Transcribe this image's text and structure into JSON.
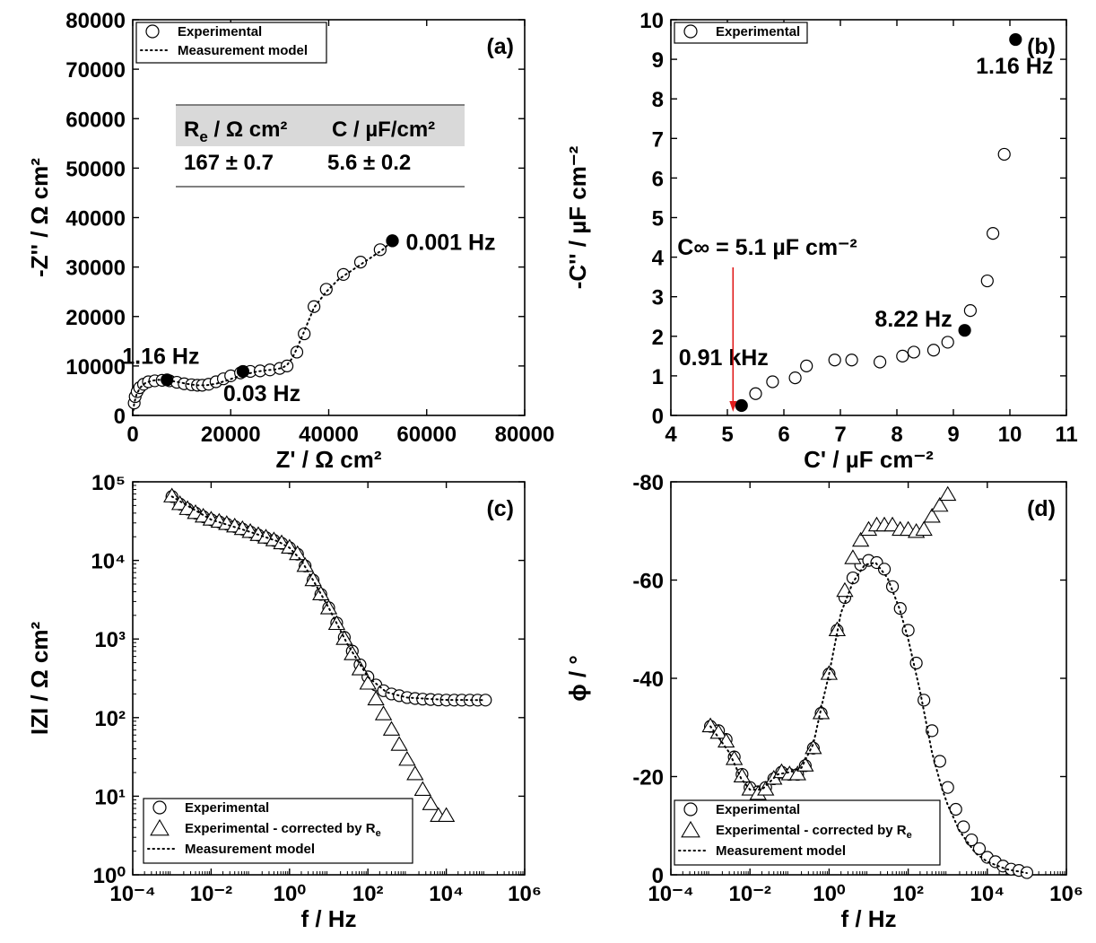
{
  "chart_data": [
    {
      "panel": "(a)",
      "type": "scatter",
      "xlabel": "Z' / Ω cm²",
      "ylabel": "-Z'' / Ω cm²",
      "xlim": [
        0,
        80000
      ],
      "ylim": [
        0,
        80000
      ],
      "xticks": [
        "0",
        "20000",
        "40000",
        "60000",
        "80000"
      ],
      "yticks": [
        "0",
        "10000",
        "20000",
        "30000",
        "40000",
        "50000",
        "60000",
        "70000",
        "80000"
      ],
      "legend": [
        "Experimental",
        "Measurement model"
      ],
      "legend_position": "top-left",
      "series": [
        {
          "name": "Experimental",
          "marker": "open-circle",
          "x": [
            300,
            500,
            900,
            1400,
            2200,
            3200,
            4500,
            6000,
            7500,
            9000,
            10500,
            12000,
            13200,
            14200,
            15500,
            17000,
            18500,
            20000,
            22000,
            24000,
            26000,
            28000,
            30000,
            31500,
            33500,
            35000,
            37000,
            39500,
            43000,
            46500,
            50500,
            53000
          ],
          "y": [
            2500,
            3800,
            4800,
            5600,
            6300,
            6800,
            7000,
            7100,
            7000,
            6700,
            6400,
            6200,
            6100,
            6100,
            6300,
            6800,
            7400,
            8000,
            8600,
            8900,
            9000,
            9200,
            9500,
            10000,
            12800,
            16500,
            22000,
            25500,
            28500,
            31000,
            33500,
            35300
          ]
        },
        {
          "name": "Measurement model",
          "style": "dotted",
          "x": [
            0,
            300,
            800,
            1500,
            2500,
            3800,
            5200,
            7000,
            9000,
            11000,
            13000,
            15000,
            17000,
            19000,
            21000,
            23000,
            25000,
            27000,
            29000,
            30500,
            31500,
            32500,
            33500,
            35000,
            37000,
            39500,
            42000,
            45000,
            48000,
            51000,
            53000
          ],
          "y": [
            0,
            2500,
            4300,
            5600,
            6500,
            7000,
            7200,
            7100,
            6800,
            6400,
            6100,
            6100,
            6400,
            7000,
            7700,
            8300,
            8800,
            9100,
            9300,
            9600,
            10200,
            11500,
            13500,
            17000,
            21800,
            25000,
            27500,
            29500,
            31500,
            33500,
            35300
          ]
        }
      ],
      "highlighted_points": [
        {
          "label": "1.16 Hz",
          "x": 7000,
          "y": 7200
        },
        {
          "label": "0.03 Hz",
          "x": 22500,
          "y": 8900
        },
        {
          "label": "0.001 Hz",
          "x": 53000,
          "y": 35300
        }
      ],
      "table": {
        "headers": [
          "R",
          "e",
          " / Ω cm²",
          "C / µF/cm²"
        ],
        "row": [
          "167 ± 0.7",
          "5.6 ± 0.2"
        ]
      }
    },
    {
      "panel": "(b)",
      "type": "scatter",
      "xlabel": "C' / µF cm⁻²",
      "ylabel": "-C'' / µF cm⁻²",
      "xlim": [
        4,
        11
      ],
      "ylim": [
        0,
        10
      ],
      "xticks": [
        "4",
        "5",
        "6",
        "7",
        "8",
        "9",
        "10",
        "11"
      ],
      "yticks": [
        "0",
        "1",
        "2",
        "3",
        "4",
        "5",
        "6",
        "7",
        "8",
        "9",
        "10"
      ],
      "legend": [
        "Experimental"
      ],
      "legend_position": "top-left",
      "series": [
        {
          "name": "Experimental",
          "marker": "open-circle",
          "x": [
            5.5,
            5.8,
            6.2,
            6.4,
            6.9,
            7.2,
            7.7,
            8.1,
            8.3,
            8.65,
            8.9,
            9.3,
            9.6,
            9.7,
            9.9
          ],
          "y": [
            0.55,
            0.85,
            0.95,
            1.25,
            1.4,
            1.4,
            1.35,
            1.5,
            1.6,
            1.65,
            1.85,
            2.65,
            3.4,
            4.6,
            6.6
          ]
        }
      ],
      "highlighted_points": [
        {
          "label": "1.16 Hz",
          "x": 10.1,
          "y": 9.5
        },
        {
          "label": "8.22 Hz",
          "x": 9.2,
          "y": 2.15
        },
        {
          "label": "0.91 kHz",
          "x": 5.25,
          "y": 0.25
        }
      ],
      "annotation": {
        "text": "C∞ = 5.1 µF cm⁻²",
        "x": 5.1,
        "color": "#e01b1b"
      }
    },
    {
      "panel": "(c)",
      "type": "scatter",
      "xlabel": "f / Hz",
      "ylabel": "IZI / Ω cm²",
      "xscale": "log",
      "yscale": "log",
      "xlim": [
        0.0001,
        1000000
      ],
      "ylim": [
        1,
        100000
      ],
      "xticks": [
        "10⁻⁴",
        "10⁻²",
        "10⁰",
        "10²",
        "10⁴",
        "10⁶"
      ],
      "yticks": [
        "10⁰",
        "10¹",
        "10²",
        "10³",
        "10⁴",
        "10⁵"
      ],
      "legend": [
        "Experimental",
        "Experimental - corrected by Re",
        "Measurement model"
      ],
      "legend_position": "bottom-left",
      "series": [
        {
          "name": "Experimental",
          "marker": "open-circle",
          "x": [
            0.001,
            0.0016,
            0.0025,
            0.004,
            0.0063,
            0.01,
            0.016,
            0.025,
            0.04,
            0.063,
            0.1,
            0.16,
            0.25,
            0.4,
            0.63,
            1,
            1.6,
            2.5,
            4,
            6.3,
            10,
            16,
            25,
            40,
            63,
            100,
            160,
            250,
            400,
            630,
            1000,
            1600,
            2500,
            4000,
            6300,
            10000,
            16000,
            25000,
            40000,
            63000,
            100000
          ],
          "y": [
            65000,
            52000,
            45000,
            40000,
            36000,
            33000,
            31000,
            29000,
            27000,
            25000,
            23000,
            21000,
            19500,
            18000,
            16500,
            14500,
            12000,
            8500,
            5600,
            3700,
            2500,
            1600,
            1050,
            700,
            470,
            330,
            260,
            220,
            200,
            190,
            180,
            175,
            172,
            170,
            168,
            167,
            167,
            167,
            167,
            167,
            167
          ]
        },
        {
          "name": "Experimental - corrected by Re",
          "marker": "open-triangle",
          "x": [
            0.001,
            0.0016,
            0.0025,
            0.004,
            0.0063,
            0.01,
            0.016,
            0.025,
            0.04,
            0.063,
            0.1,
            0.16,
            0.25,
            0.4,
            0.63,
            1,
            1.6,
            2.5,
            4,
            6.3,
            10,
            16,
            25,
            40,
            63,
            100,
            160,
            250,
            400,
            630,
            1000,
            1600,
            2500,
            4000,
            6300,
            10000
          ],
          "y": [
            65000,
            52000,
            45000,
            40000,
            36000,
            33000,
            31000,
            29000,
            27000,
            25000,
            23000,
            21000,
            19500,
            18000,
            16500,
            14500,
            12000,
            8500,
            5600,
            3700,
            2450,
            1550,
            1000,
            640,
            410,
            270,
            170,
            110,
            70,
            45,
            29,
            19,
            12,
            7.9,
            5.6,
            5.6
          ]
        },
        {
          "name": "Measurement model",
          "style": "dotted",
          "x": [
            0.001,
            0.01,
            0.1,
            0.5,
            1,
            2,
            4,
            10,
            30,
            100,
            300,
            1000,
            10000,
            100000
          ],
          "y": [
            65000,
            33000,
            23000,
            17500,
            14500,
            10000,
            5600,
            2500,
            860,
            330,
            210,
            180,
            168,
            167
          ]
        }
      ]
    },
    {
      "panel": "(d)",
      "type": "scatter",
      "xlabel": "f / Hz",
      "ylabel": "ϕ / °",
      "xscale": "log",
      "xlim": [
        0.0001,
        1000000
      ],
      "ylim": [
        0,
        -90
      ],
      "xticks": [
        "10⁻⁴",
        "10⁻²",
        "10⁰",
        "10²",
        "10⁴",
        "10⁶"
      ],
      "yticks": [
        "0",
        "-20",
        "-40",
        "-60",
        "-80"
      ],
      "legend": [
        "Experimental",
        "Experimental - corrected by Re",
        "Measurement model"
      ],
      "legend_position": "bottom-left",
      "series": [
        {
          "name": "Experimental",
          "marker": "open-circle",
          "x": [
            0.001,
            0.0016,
            0.0025,
            0.004,
            0.0063,
            0.01,
            0.016,
            0.025,
            0.04,
            0.063,
            0.1,
            0.16,
            0.25,
            0.4,
            0.63,
            1,
            1.6,
            2.5,
            4,
            6.3,
            10,
            16,
            25,
            40,
            63,
            100,
            160,
            250,
            400,
            630,
            1000,
            1600,
            2500,
            4000,
            6300,
            10000,
            16000,
            25000,
            40000,
            63000,
            100000
          ],
          "y": [
            -34,
            -33,
            -31,
            -27,
            -23,
            -20,
            -19,
            -20,
            -22,
            -23.5,
            -23,
            -23,
            -25,
            -29,
            -37,
            -46,
            -56,
            -63.5,
            -68,
            -71,
            -72,
            -71.5,
            -70,
            -66,
            -61,
            -56,
            -48.5,
            -40,
            -33,
            -26,
            -20,
            -15,
            -11,
            -8,
            -6,
            -4,
            -3,
            -2,
            -1.3,
            -1,
            -0.5
          ]
        },
        {
          "name": "Experimental - corrected by Re",
          "marker": "open-triangle",
          "x": [
            0.001,
            0.0016,
            0.0025,
            0.004,
            0.0063,
            0.01,
            0.016,
            0.025,
            0.04,
            0.063,
            0.1,
            0.16,
            0.25,
            0.4,
            0.63,
            1,
            1.6,
            2.5,
            4,
            6.3,
            10,
            16,
            25,
            40,
            63,
            100,
            160,
            250,
            400,
            630,
            1000
          ],
          "y": [
            -34,
            -32.5,
            -30.5,
            -26.5,
            -22.5,
            -19.5,
            -18.5,
            -19.5,
            -22,
            -23.5,
            -23,
            -23,
            -25,
            -29,
            -37,
            -46,
            -56,
            -65,
            -72.5,
            -76.5,
            -79,
            -80,
            -80,
            -80,
            -79,
            -79,
            -78.5,
            -79,
            -82,
            -84.5,
            -87
          ]
        },
        {
          "name": "Measurement model",
          "style": "dotted",
          "x": [
            0.001,
            0.003,
            0.006,
            0.01,
            0.02,
            0.05,
            0.1,
            0.2,
            0.4,
            0.7,
            1,
            2,
            4,
            8,
            15,
            30,
            60,
            100,
            200,
            400,
            700,
            1000,
            2000,
            5000,
            10000,
            30000,
            100000
          ],
          "y": [
            -34,
            -28,
            -22,
            -19.5,
            -19.5,
            -23,
            -23.5,
            -24.5,
            -30,
            -40,
            -46,
            -60,
            -67,
            -71,
            -71.5,
            -68,
            -61,
            -54,
            -42,
            -28,
            -20,
            -16,
            -10,
            -5,
            -3,
            -1.3,
            -0.4
          ]
        }
      ]
    }
  ]
}
